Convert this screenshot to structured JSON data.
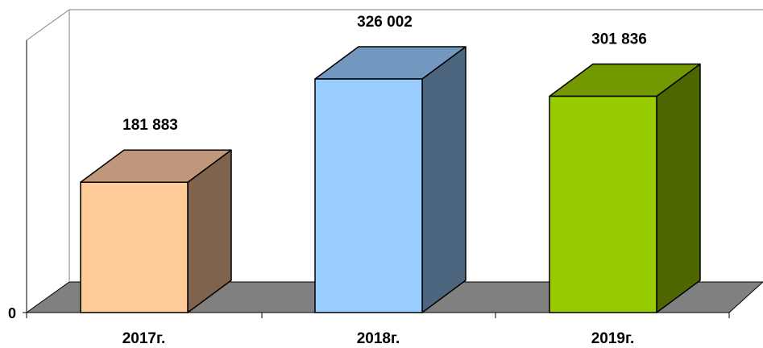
{
  "chart_data": {
    "type": "bar",
    "style": "3d-column",
    "categories": [
      "2017г.",
      "2018г.",
      "2019г."
    ],
    "values": [
      181883,
      326002,
      301836
    ],
    "value_labels": [
      "181 883",
      "326 002",
      "301 836"
    ],
    "ytick_labels": [
      "0"
    ],
    "ylim": [
      0,
      380000
    ],
    "grid": false,
    "legend": "none",
    "colors": [
      {
        "front": "#FFCC99",
        "top": "#C0977A",
        "side": "#7F634C"
      },
      {
        "front": "#99CCFF",
        "top": "#7398BF",
        "side": "#4C6680"
      },
      {
        "front": "#99CC00",
        "top": "#739800",
        "side": "#4D6600"
      }
    ],
    "floor_color": "#808080"
  }
}
